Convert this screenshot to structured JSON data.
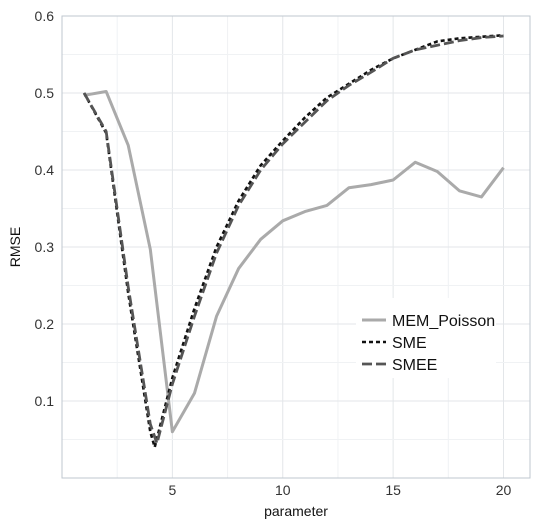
{
  "chart_data": {
    "type": "line",
    "title": "",
    "xlabel": "parameter",
    "ylabel": "RMSE",
    "xlim": [
      0,
      21.2
    ],
    "ylim": [
      0.0,
      0.6
    ],
    "x_ticks": [
      5,
      10,
      15,
      20
    ],
    "y_ticks": [
      0.1,
      0.2,
      0.3,
      0.4,
      0.5,
      0.6
    ],
    "x_tick_labels": [
      "5",
      "10",
      "15",
      "20"
    ],
    "y_tick_labels": [
      "0.1",
      "0.2",
      "0.3",
      "0.4",
      "0.5",
      "0.6"
    ],
    "grid": true,
    "legend_position": "bottom-right",
    "x": [
      1,
      2,
      3,
      4,
      5,
      6,
      7,
      8,
      9,
      10,
      11,
      12,
      13,
      14,
      15,
      16,
      17,
      18,
      19,
      20
    ],
    "series": [
      {
        "name": "MEM_Poisson",
        "style": "solid",
        "color": "#aaaaaa",
        "x": [
          1,
          2,
          3,
          4,
          5,
          6,
          7,
          8,
          9,
          10,
          11,
          12,
          13,
          14,
          15,
          16,
          17,
          18,
          19,
          20
        ],
        "values": [
          0.497,
          0.502,
          0.432,
          0.297,
          0.06,
          0.11,
          0.21,
          0.272,
          0.31,
          0.334,
          0.346,
          0.354,
          0.377,
          0.381,
          0.387,
          0.41,
          0.398,
          0.373,
          0.365,
          0.403
        ]
      },
      {
        "name": "SME",
        "style": "dotted",
        "color": "#111111",
        "x": [
          1,
          2,
          3,
          4,
          4.2,
          5,
          6,
          7,
          8,
          9,
          10,
          11,
          12,
          13,
          14,
          15,
          16,
          17,
          18,
          19,
          20
        ],
        "values": [
          0.5,
          0.448,
          0.24,
          0.06,
          0.04,
          0.13,
          0.22,
          0.3,
          0.36,
          0.406,
          0.438,
          0.468,
          0.494,
          0.512,
          0.53,
          0.545,
          0.556,
          0.567,
          0.571,
          0.573,
          0.575
        ]
      },
      {
        "name": "SMEE",
        "style": "dashed",
        "color": "#555555",
        "x": [
          1,
          2,
          3,
          4,
          4.3,
          5,
          6,
          7,
          8,
          9,
          10,
          11,
          12,
          13,
          14,
          15,
          16,
          17,
          18,
          19,
          20
        ],
        "values": [
          0.5,
          0.45,
          0.248,
          0.07,
          0.045,
          0.122,
          0.21,
          0.292,
          0.354,
          0.4,
          0.434,
          0.462,
          0.49,
          0.51,
          0.527,
          0.545,
          0.556,
          0.562,
          0.568,
          0.572,
          0.574
        ]
      }
    ]
  }
}
